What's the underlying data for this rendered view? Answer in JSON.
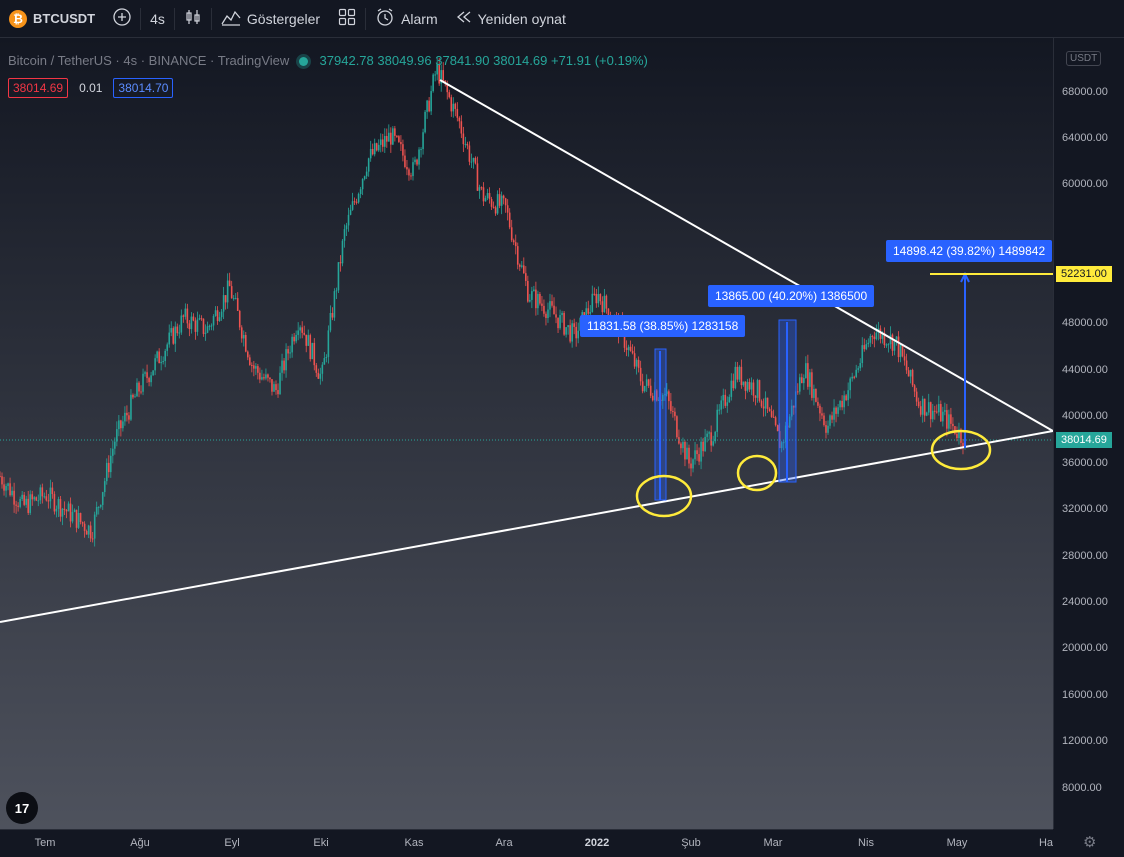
{
  "toolbar": {
    "symbol": "BTCUSDT",
    "interval": "4s",
    "indicators_label": "Göstergeler",
    "alarm_label": "Alarm",
    "replay_label": "Yeniden oynat"
  },
  "legend": {
    "title": "Bitcoin / TetherUS · 4s · BINANCE · TradingView",
    "open": "37942.78",
    "high": "38049.96",
    "low": "37841.90",
    "close": "38014.69",
    "change": "+71.91 (+0.19%)"
  },
  "trade": {
    "sell": "38014.69",
    "spread": "0.01",
    "buy": "38014.70"
  },
  "logo_text": "17",
  "y_axis": {
    "currency": "USDT",
    "ticks": [
      "68000.00",
      "64000.00",
      "60000.00",
      "48000.00",
      "44000.00",
      "40000.00",
      "36000.00",
      "32000.00",
      "28000.00",
      "24000.00",
      "20000.00",
      "16000.00",
      "12000.00",
      "8000.00"
    ],
    "current_price": "38014.69",
    "target_price": "52231.00"
  },
  "x_axis": {
    "ticks": [
      {
        "label": "Tem",
        "bold": false
      },
      {
        "label": "Ağu",
        "bold": false
      },
      {
        "label": "Eyl",
        "bold": false
      },
      {
        "label": "Eki",
        "bold": false
      },
      {
        "label": "Kas",
        "bold": false
      },
      {
        "label": "Ara",
        "bold": false
      },
      {
        "label": "2022",
        "bold": true
      },
      {
        "label": "Şub",
        "bold": false
      },
      {
        "label": "Mar",
        "bold": false
      },
      {
        "label": "Nis",
        "bold": false
      },
      {
        "label": "May",
        "bold": false
      },
      {
        "label": "Ha",
        "bold": false
      }
    ]
  },
  "measurements": [
    {
      "label": "11831.58 (38.85%) 1283158"
    },
    {
      "label": "13865.00 (40.20%) 1386500"
    },
    {
      "label": "14898.42 (39.82%) 1489842"
    }
  ],
  "chart_data": {
    "type": "candlestick",
    "symbol": "BTCUSDT",
    "ylim": [
      6000,
      71000
    ],
    "close_points": [
      {
        "x": "Tem",
        "y": 35000
      },
      {
        "x": "Tem",
        "y": 32500
      },
      {
        "x": "Tem",
        "y": 33500
      },
      {
        "x": "Tem",
        "y": 32000
      },
      {
        "x": "Ağu",
        "y": 30500
      },
      {
        "x": "Ağu",
        "y": 38000
      },
      {
        "x": "Ağu",
        "y": 42000
      },
      {
        "x": "Ağu",
        "y": 45000
      },
      {
        "x": "Eyl",
        "y": 48000
      },
      {
        "x": "Eyl",
        "y": 47000
      },
      {
        "x": "Eyl",
        "y": 50500
      },
      {
        "x": "Eyl",
        "y": 44000
      },
      {
        "x": "Eyl",
        "y": 42000
      },
      {
        "x": "Eki",
        "y": 48000
      },
      {
        "x": "Eki",
        "y": 43000
      },
      {
        "x": "Eki",
        "y": 55000
      },
      {
        "x": "Eki",
        "y": 61000
      },
      {
        "x": "Eki",
        "y": 63000
      },
      {
        "x": "Kas",
        "y": 60000
      },
      {
        "x": "Kas",
        "y": 68500
      },
      {
        "x": "Kas",
        "y": 64000
      },
      {
        "x": "Kas",
        "y": 58000
      },
      {
        "x": "Ara",
        "y": 57000
      },
      {
        "x": "Ara",
        "y": 50000
      },
      {
        "x": "Ara",
        "y": 48500
      },
      {
        "x": "Ara",
        "y": 46500
      },
      {
        "x": "Ara",
        "y": 50000
      },
      {
        "x": "2022",
        "y": 47000
      },
      {
        "x": "2022",
        "y": 42500
      },
      {
        "x": "2022",
        "y": 41500
      },
      {
        "x": "Şub",
        "y": 36000
      },
      {
        "x": "Şub",
        "y": 38500
      },
      {
        "x": "Şub",
        "y": 43500
      },
      {
        "x": "Şub",
        "y": 42000
      },
      {
        "x": "Mar",
        "y": 37500
      },
      {
        "x": "Mar",
        "y": 44000
      },
      {
        "x": "Mar",
        "y": 39000
      },
      {
        "x": "Mar",
        "y": 42500
      },
      {
        "x": "Nis",
        "y": 47000
      },
      {
        "x": "Nis",
        "y": 46000
      },
      {
        "x": "Nis",
        "y": 41000
      },
      {
        "x": "Nis",
        "y": 40000
      },
      {
        "x": "May",
        "y": 38014.69
      }
    ],
    "current_price": 38014.69,
    "target_price": 52231,
    "measurements": [
      {
        "change": 11831.58,
        "percent": 38.85
      },
      {
        "change": 13865.0,
        "percent": 40.2
      },
      {
        "change": 14898.42,
        "percent": 39.82
      }
    ]
  }
}
